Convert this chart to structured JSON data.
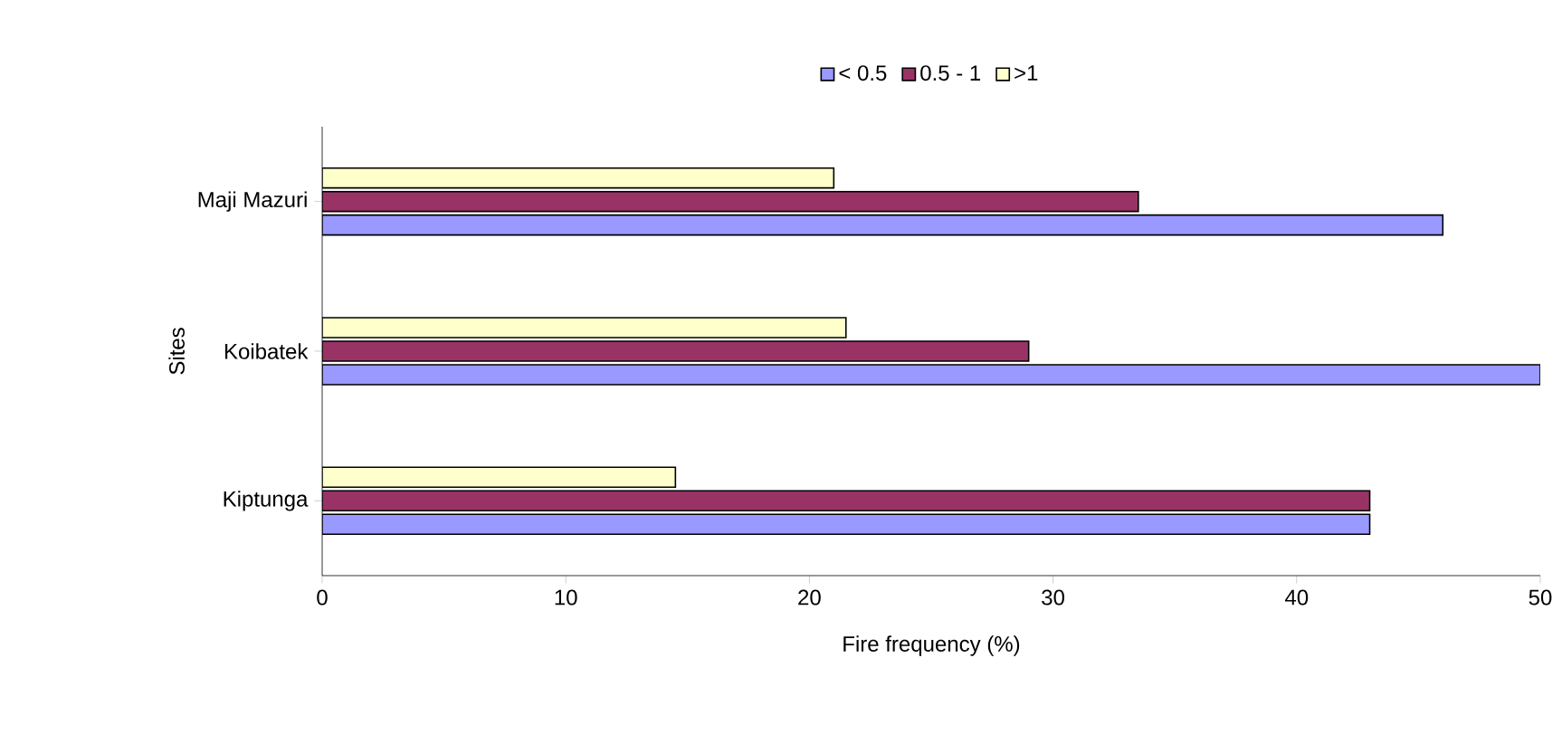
{
  "chart_data": {
    "type": "bar",
    "orientation": "horizontal",
    "xlabel": "Fire frequency (%)",
    "ylabel": "Sites",
    "categories": [
      "Maji Mazuri",
      "Koibatek",
      "Kiptunga"
    ],
    "series": [
      {
        "name": "< 0.5",
        "color": "#9999ff",
        "values": [
          46,
          50,
          43
        ]
      },
      {
        "name": "0.5 - 1",
        "color": "#993366",
        "values": [
          33.5,
          29,
          43
        ]
      },
      {
        "name": ">1",
        "color": "#ffffcc",
        "values": [
          21,
          21.5,
          14.5
        ]
      }
    ],
    "xlim": [
      0,
      50
    ],
    "xticks": [
      0,
      10,
      20,
      30,
      40,
      50
    ],
    "grid": false,
    "legend": "top"
  }
}
